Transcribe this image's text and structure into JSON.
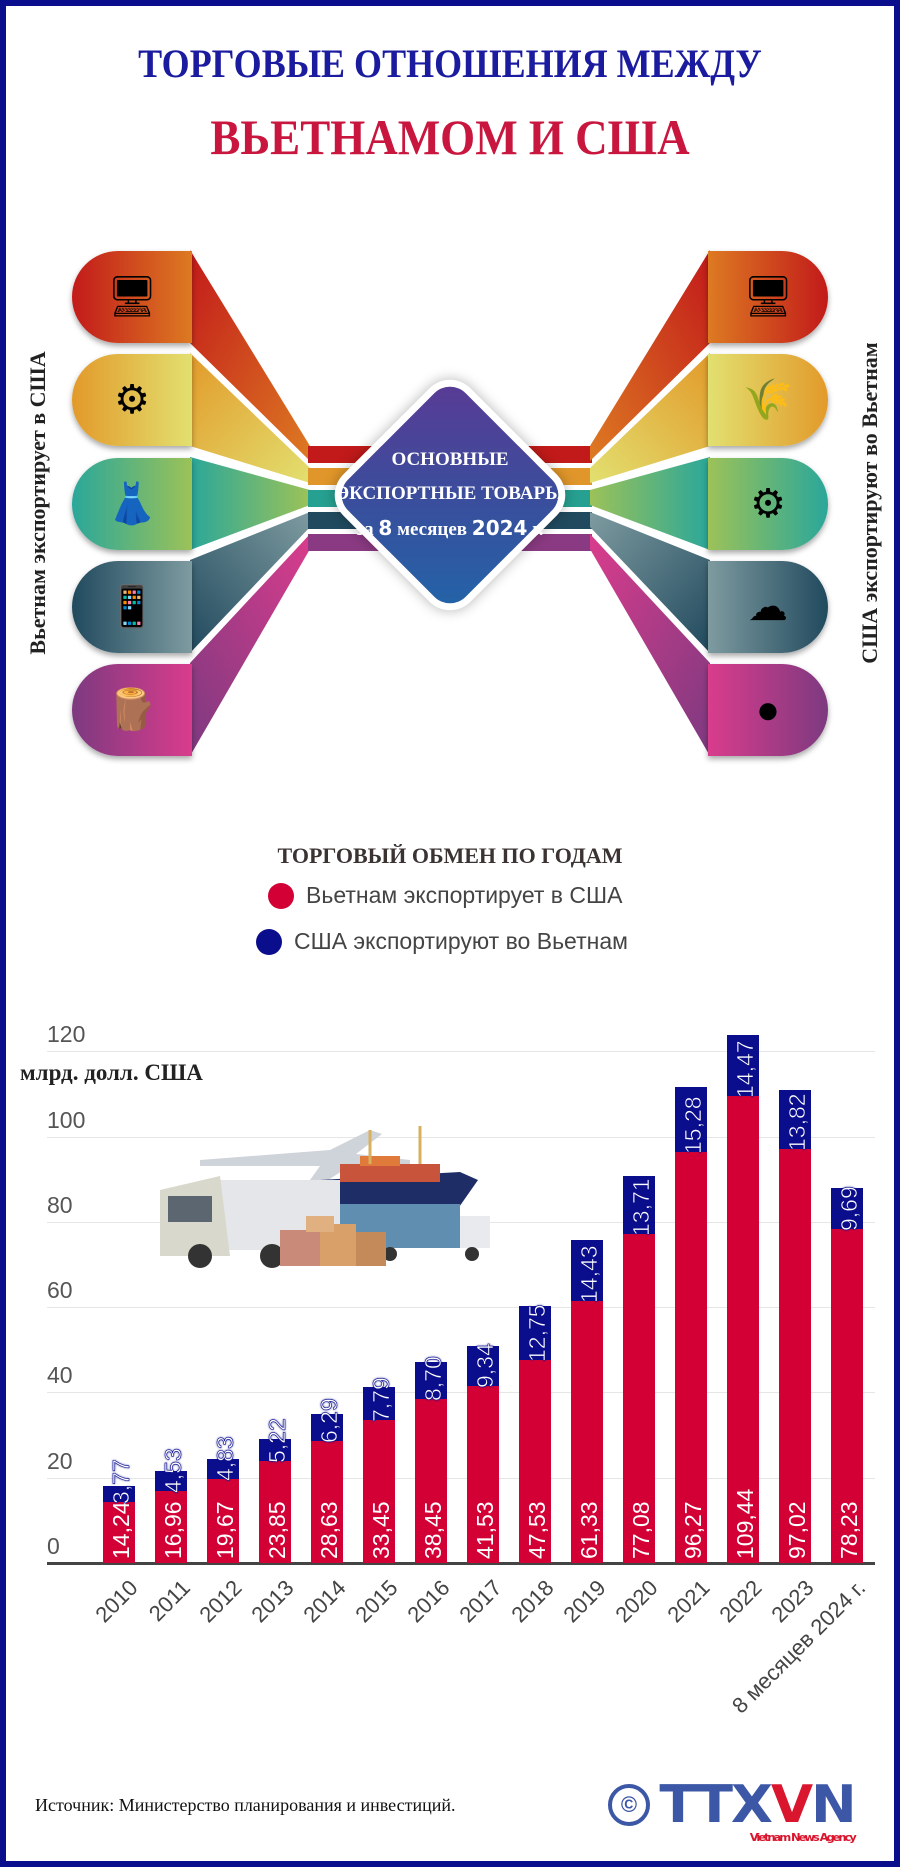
{
  "header": {
    "title_line1": "ТОРГОВЫЕ ОТНОШЕНИЯ МЕЖДУ",
    "title_line2": "ВЬЕТНАМОМ И США"
  },
  "exports_section": {
    "left_label": "Вьетнам экспортирует в США",
    "right_label": "США экспортируют во Вьетнам",
    "center": {
      "line1": "ОСНОВНЫЕ",
      "line2": "ЭКСПОРТНЫЕ ТОВАРЫ",
      "line3_prefix": "за",
      "line3_num": "8",
      "line3_mid": "месяцев",
      "line3_year": "2024",
      "line3_suffix": "г."
    },
    "left_items": [
      {
        "icon": "computer-icon",
        "glyph": "🖥",
        "color_from": "#c21a1a",
        "color_to": "#dd7a22"
      },
      {
        "icon": "machinery-gears-icon",
        "glyph": "⚙",
        "color_from": "#e29a2a",
        "color_to": "#e2e070"
      },
      {
        "icon": "textile-dress-icon",
        "glyph": "👗",
        "color_from": "#2aa79a",
        "color_to": "#9cc258"
      },
      {
        "icon": "smartphone-icon",
        "glyph": "📱",
        "color_from": "#214a5e",
        "color_to": "#7e9ba0"
      },
      {
        "icon": "wood-logs-icon",
        "glyph": "🪵",
        "color_from": "#7d3a80",
        "color_to": "#d93c8c"
      }
    ],
    "right_items": [
      {
        "icon": "computer-icon",
        "glyph": "🖥",
        "color_from": "#dd7a22",
        "color_to": "#c21a1a"
      },
      {
        "icon": "grain-feed-icon",
        "glyph": "🌾",
        "color_from": "#e2e070",
        "color_to": "#e29a2a"
      },
      {
        "icon": "machinery-gears-icon",
        "glyph": "⚙",
        "color_from": "#9cc258",
        "color_to": "#2aa79a"
      },
      {
        "icon": "cotton-icon",
        "glyph": "☁",
        "color_from": "#7e9ba0",
        "color_to": "#214a5e"
      },
      {
        "icon": "plastic-pellets-icon",
        "glyph": "●",
        "color_from": "#d93c8c",
        "color_to": "#7d3a80"
      }
    ]
  },
  "chart_data": {
    "type": "bar",
    "stacked": true,
    "title": "ТОРГОВЫЙ ОБМЕН ПО ГОДАМ",
    "ylabel": "млрд. долл. США",
    "xlabel": "",
    "ylim": [
      0,
      120
    ],
    "yticks": [
      0,
      20,
      40,
      60,
      80,
      100,
      120
    ],
    "grid": true,
    "legend_position": "top",
    "categories": [
      "2010",
      "2011",
      "2012",
      "2013",
      "2014",
      "2015",
      "2016",
      "2017",
      "2018",
      "2019",
      "2020",
      "2021",
      "2022",
      "2023",
      "8 месяцев 2024 г."
    ],
    "series": [
      {
        "name": "Вьетнам экспортирует в США",
        "color": "#d30036",
        "values": [
          14.24,
          16.96,
          19.67,
          23.85,
          28.63,
          33.45,
          38.45,
          41.53,
          47.53,
          61.33,
          77.08,
          96.27,
          109.44,
          97.02,
          78.23
        ],
        "labels": [
          "14,24",
          "16,96",
          "19,67",
          "23,85",
          "28,63",
          "33,45",
          "38,45",
          "41,53",
          "47,53",
          "61,33",
          "77,08",
          "96,27",
          "109,44",
          "97,02",
          "78,23"
        ]
      },
      {
        "name": "США экспортируют во Вьетнам",
        "color": "#0b0e8c",
        "values": [
          3.77,
          4.53,
          4.83,
          5.22,
          6.29,
          7.79,
          8.7,
          9.34,
          12.75,
          14.43,
          13.71,
          15.28,
          14.47,
          13.82,
          9.69
        ],
        "labels": [
          "3,77",
          "4,53",
          "4,83",
          "5,22",
          "6,29",
          "7,79",
          "8,70",
          "9,34",
          "12,75",
          "14,43",
          "13,71",
          "15,28",
          "14,47",
          "13,82",
          "9,69"
        ]
      }
    ]
  },
  "chart": {
    "title": "ТОРГОВЫЙ ОБМЕН ПО ГОДАМ",
    "legend": [
      {
        "label": "Вьетнам экспортирует в США",
        "color": "#d30036"
      },
      {
        "label": "США экспортируют во Вьетнам",
        "color": "#0b0e8c"
      }
    ],
    "unit_label": "млрд. долл. США",
    "illustration": "logistics-illustration"
  },
  "footer": {
    "source": "Источник: Министерство планирования и инвестиций.",
    "logo_copyright": "©",
    "logo_text_a": "TTX",
    "logo_text_v": "V",
    "logo_text_b": "N",
    "logo_tagline": "Vietnam News Agency"
  }
}
